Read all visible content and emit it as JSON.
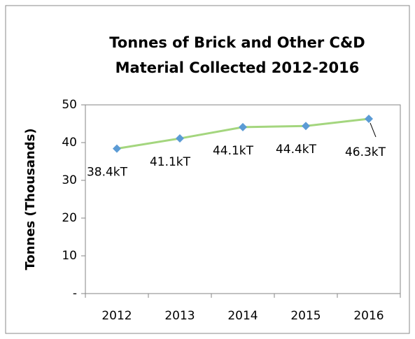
{
  "chart_data": {
    "type": "line",
    "title": [
      "Tonnes of Brick and Other C&D",
      "Material Collected 2012-2016"
    ],
    "y_label": "Tonnes (Thousands)",
    "categories": [
      "2012",
      "2013",
      "2014",
      "2015",
      "2016"
    ],
    "series": [
      {
        "name": "Tonnes",
        "line_color": "#a4d67e",
        "marker_color": "#5b9bd5",
        "values": [
          38.4,
          41.1,
          44.1,
          44.4,
          46.3
        ],
        "value_labels": [
          "38.4kT",
          "41.1kT",
          "44.1kT",
          "44.4kT",
          "46.3kT"
        ]
      }
    ],
    "ylim": [
      0,
      50
    ],
    "yticks": [
      {
        "value": 0,
        "label": "-"
      },
      10,
      20,
      30,
      40,
      50
    ],
    "grid": false,
    "legend": false
  }
}
